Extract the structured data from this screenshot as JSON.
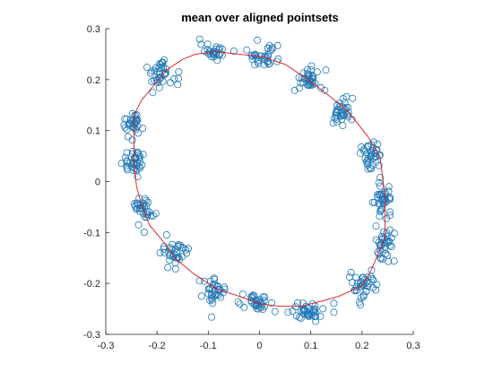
{
  "chart_data": {
    "type": "scatter",
    "title": "mean over aligned pointsets",
    "xlabel": "",
    "ylabel": "",
    "xlim": [
      -0.3,
      0.3
    ],
    "ylim": [
      -0.3,
      0.3
    ],
    "grid": false,
    "xticks": [
      -0.3,
      -0.2,
      -0.1,
      0,
      0.1,
      0.2,
      0.3
    ],
    "yticks": [
      -0.3,
      -0.2,
      -0.1,
      0,
      0.1,
      0.2,
      0.3
    ],
    "xtick_labels": [
      "-0.3",
      "-0.2",
      "-0.1",
      "0",
      "0.1",
      "0.2",
      "0.3"
    ],
    "ytick_labels": [
      "-0.3",
      "-0.2",
      "-0.1",
      "0",
      "0.1",
      "0.2",
      "0.3"
    ],
    "marker": "circle-open",
    "scatter_color": "#1f77b4",
    "mean_color": "#d9141b",
    "mean_shape": [
      [
        -0.085,
        0.255
      ],
      [
        -0.04,
        0.25
      ],
      [
        0.005,
        0.245
      ],
      [
        0.05,
        0.23
      ],
      [
        0.095,
        0.2
      ],
      [
        0.14,
        0.165
      ],
      [
        0.175,
        0.135
      ],
      [
        0.21,
        0.09
      ],
      [
        0.235,
        0.05
      ],
      [
        0.245,
        -0.03
      ],
      [
        0.245,
        -0.11
      ],
      [
        0.235,
        -0.135
      ],
      [
        0.215,
        -0.18
      ],
      [
        0.2,
        -0.205
      ],
      [
        0.155,
        -0.225
      ],
      [
        0.12,
        -0.235
      ],
      [
        0.08,
        -0.245
      ],
      [
        0.04,
        -0.245
      ],
      [
        0.0,
        -0.24
      ],
      [
        -0.04,
        -0.225
      ],
      [
        -0.085,
        -0.21
      ],
      [
        -0.13,
        -0.18
      ],
      [
        -0.165,
        -0.15
      ],
      [
        -0.19,
        -0.115
      ],
      [
        -0.215,
        -0.085
      ],
      [
        -0.23,
        -0.045
      ],
      [
        -0.24,
        -0.01
      ],
      [
        -0.245,
        0.04
      ],
      [
        -0.245,
        0.09
      ],
      [
        -0.245,
        0.13
      ],
      [
        -0.23,
        0.16
      ],
      [
        -0.205,
        0.19
      ],
      [
        -0.18,
        0.22
      ],
      [
        -0.15,
        0.24
      ],
      [
        -0.125,
        0.25
      ],
      [
        -0.085,
        0.255
      ]
    ],
    "clusters": [
      {
        "center": [
          -0.085,
          0.255
        ],
        "spread": [
          0.022,
          0.012
        ],
        "n": 30
      },
      {
        "center": [
          0.005,
          0.245
        ],
        "spread": [
          0.025,
          0.014
        ],
        "n": 34
      },
      {
        "center": [
          0.095,
          0.2
        ],
        "spread": [
          0.02,
          0.02
        ],
        "n": 38
      },
      {
        "center": [
          0.16,
          0.135
        ],
        "spread": [
          0.016,
          0.022
        ],
        "n": 36
      },
      {
        "center": [
          0.22,
          0.05
        ],
        "spread": [
          0.015,
          0.022
        ],
        "n": 38
      },
      {
        "center": [
          0.24,
          -0.03
        ],
        "spread": [
          0.012,
          0.022
        ],
        "n": 36
      },
      {
        "center": [
          0.245,
          -0.12
        ],
        "spread": [
          0.014,
          0.022
        ],
        "n": 38
      },
      {
        "center": [
          0.205,
          -0.205
        ],
        "spread": [
          0.02,
          0.02
        ],
        "n": 38
      },
      {
        "center": [
          0.09,
          -0.255
        ],
        "spread": [
          0.025,
          0.012
        ],
        "n": 38
      },
      {
        "center": [
          0.0,
          -0.24
        ],
        "spread": [
          0.025,
          0.012
        ],
        "n": 34
      },
      {
        "center": [
          -0.09,
          -0.215
        ],
        "spread": [
          0.022,
          0.018
        ],
        "n": 36
      },
      {
        "center": [
          -0.165,
          -0.14
        ],
        "spread": [
          0.018,
          0.022
        ],
        "n": 36
      },
      {
        "center": [
          -0.225,
          -0.055
        ],
        "spread": [
          0.016,
          0.02
        ],
        "n": 34
      },
      {
        "center": [
          -0.245,
          0.035
        ],
        "spread": [
          0.014,
          0.022
        ],
        "n": 36
      },
      {
        "center": [
          -0.25,
          0.115
        ],
        "spread": [
          0.014,
          0.02
        ],
        "n": 32
      },
      {
        "center": [
          -0.19,
          0.215
        ],
        "spread": [
          0.02,
          0.022
        ],
        "n": 38
      }
    ]
  }
}
